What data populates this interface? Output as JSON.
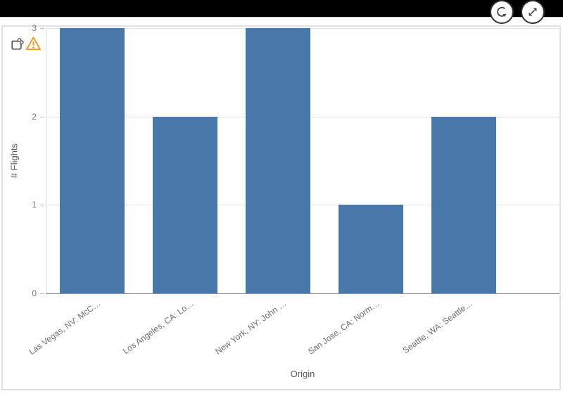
{
  "toolbar": {
    "refresh_icon": "refresh-icon",
    "expand_icon": "expand-icon"
  },
  "card": {
    "snapshot_link_icon": "snapshot-link-icon",
    "warning_icon": "warning-triangle-icon"
  },
  "colors": {
    "bar_blue": "#4778a9",
    "warning_orange": "#ef9b33",
    "top_bar_black": "#000000",
    "axis_gray": "#8f8f8f",
    "gridline_gray": "#e4e4e4"
  },
  "chart_data": {
    "type": "bar",
    "categories": [
      "Las Vegas, NV: McC…",
      "Los Angeles, CA: Lo…",
      "New York, NY: John …",
      "San Jose, CA: Norm…",
      "Seattle, WA: Seattle…"
    ],
    "values": [
      3,
      2,
      3,
      1,
      2
    ],
    "title": "",
    "xlabel": "Origin",
    "ylabel": "# Flights",
    "ylim": [
      0,
      3
    ],
    "yticks": [
      0,
      1,
      2,
      3
    ],
    "grid": true,
    "legend": "none",
    "bar_color": "#4778a9"
  }
}
